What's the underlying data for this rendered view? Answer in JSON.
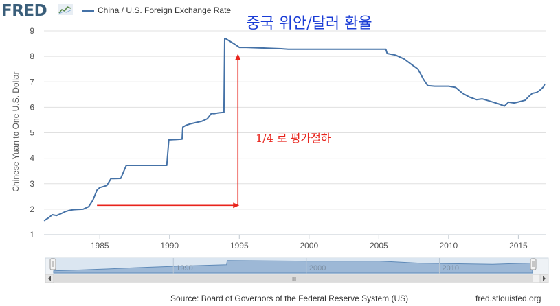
{
  "header": {
    "logo_text": "FRED",
    "logo_icon": "fred-chart-icon",
    "series_legend": "China / U.S. Foreign Exchange Rate"
  },
  "annotations": {
    "title_korean": "중국 위안/달러 환율",
    "devaluation_note": "1/4 로 평가절하",
    "arrow_color": "#e8241c",
    "title_color": "#1a3cd6"
  },
  "navigator": {
    "tick_labels": [
      "1990",
      "2000",
      "2010"
    ],
    "scrollbar_grip": "III"
  },
  "footer": {
    "source": "Source: Board of Governors of the Federal Reserve System (US)",
    "url": "fred.stlouisfed.org"
  },
  "chart_data": {
    "type": "line",
    "ylabel": "Chinese Yuan to One U.S. Dollar",
    "xlabel": "",
    "ylim": [
      1,
      9
    ],
    "xlim": [
      1981,
      2017
    ],
    "yticks": [
      1,
      2,
      3,
      4,
      5,
      6,
      7,
      8,
      9
    ],
    "xticks": [
      1985,
      1990,
      1995,
      2000,
      2005,
      2010,
      2015
    ],
    "grid": "horizontal",
    "line_color": "#4572a7",
    "series": [
      {
        "x": [
          1981.0,
          1981.3,
          1981.6,
          1981.9,
          1982.2,
          1982.5,
          1982.8,
          1983.1,
          1983.4,
          1983.8,
          1984.2,
          1984.5,
          1984.8,
          1985.0,
          1985.2,
          1985.5,
          1985.8,
          1986.0,
          1986.5,
          1986.9,
          1987.0,
          1987.5,
          1988.5,
          1989.8,
          1989.95,
          1990.0,
          1990.9,
          1990.95,
          1991.2,
          1991.5,
          1991.9,
          1992.3,
          1992.7,
          1993.0,
          1993.2,
          1993.5,
          1993.9,
          1993.95,
          1994.0,
          1994.3,
          1994.6,
          1995.0,
          1995.5,
          1996.0,
          1997.0,
          1998.0,
          1998.5,
          2000.0,
          2005.5,
          2005.6,
          2006.2,
          2006.8,
          2007.3,
          2007.8,
          2008.2,
          2008.5,
          2009.0,
          2010.0,
          2010.5,
          2011.0,
          2011.5,
          2012.0,
          2012.4,
          2012.8,
          2013.2,
          2013.6,
          2014.0,
          2014.3,
          2014.7,
          2015.0,
          2015.5,
          2015.7,
          2016.0,
          2016.3,
          2016.5,
          2016.8,
          2016.9
        ],
        "values": [
          1.55,
          1.65,
          1.78,
          1.75,
          1.82,
          1.9,
          1.95,
          1.98,
          1.99,
          2.0,
          2.1,
          2.35,
          2.75,
          2.85,
          2.88,
          2.93,
          3.2,
          3.2,
          3.21,
          3.72,
          3.72,
          3.72,
          3.72,
          3.72,
          4.72,
          4.72,
          4.75,
          5.22,
          5.3,
          5.35,
          5.4,
          5.45,
          5.55,
          5.76,
          5.75,
          5.78,
          5.8,
          8.7,
          8.7,
          8.6,
          8.5,
          8.35,
          8.35,
          8.34,
          8.32,
          8.3,
          8.28,
          8.28,
          8.28,
          8.11,
          8.05,
          7.9,
          7.7,
          7.5,
          7.1,
          6.85,
          6.83,
          6.83,
          6.78,
          6.55,
          6.4,
          6.3,
          6.33,
          6.27,
          6.2,
          6.13,
          6.05,
          6.2,
          6.17,
          6.21,
          6.28,
          6.4,
          6.55,
          6.58,
          6.65,
          6.8,
          6.92
        ]
      }
    ],
    "navigator": {
      "x": [
        1981,
        1985,
        1987,
        1990,
        1994,
        1994.05,
        2000,
        2005.5,
        2008.5,
        2014,
        2017
      ],
      "values": [
        1.55,
        2.85,
        3.72,
        4.72,
        5.8,
        8.7,
        8.28,
        8.28,
        6.83,
        6.05,
        6.92
      ]
    }
  }
}
